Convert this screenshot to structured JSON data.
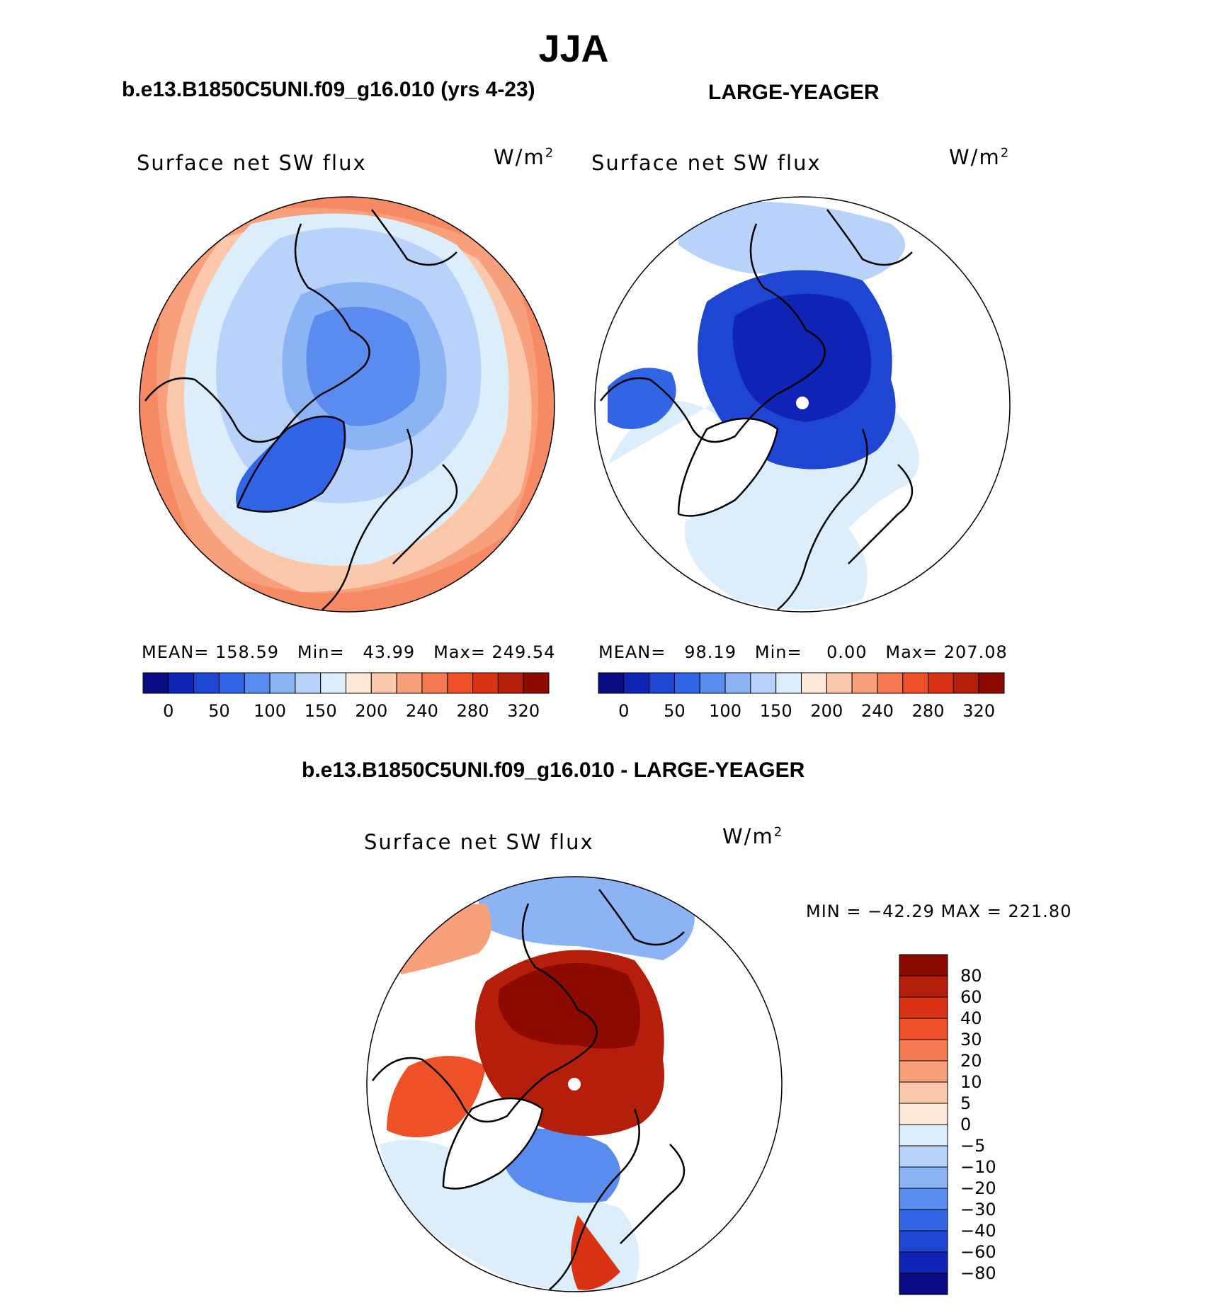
{
  "title": "JJA",
  "panels": {
    "left": {
      "case": "b.e13.B1850C5UNI.f09_g16.010 (yrs 4-23)",
      "variable": "Surface net SW flux",
      "units_base": "W/m",
      "units_exp": "2",
      "stats": {
        "mean_label": "MEAN=",
        "mean": "158.59",
        "min_label": "Min=",
        "min": "43.99",
        "max_label": "Max=",
        "max": "249.54"
      }
    },
    "right": {
      "case": "LARGE-YEAGER",
      "variable": "Surface net SW flux",
      "units_base": "W/m",
      "units_exp": "2",
      "stats": {
        "mean_label": "MEAN=",
        "mean": "98.19",
        "min_label": "Min=",
        "min": "0.00",
        "max_label": "Max=",
        "max": "207.08"
      }
    },
    "diff": {
      "case": "b.e13.B1850C5UNI.f09_g16.010 - LARGE-YEAGER",
      "variable": "Surface net SW flux",
      "units_base": "W/m",
      "units_exp": "2",
      "minmax": "MIN = −42.29 MAX = 221.80"
    }
  },
  "colorbar_fields": {
    "ticks": [
      "0",
      "50",
      "100",
      "150",
      "200",
      "240",
      "280",
      "320"
    ],
    "colors": [
      "#0a0a82",
      "#0f23b4",
      "#1e46d2",
      "#3264e6",
      "#5a8cf0",
      "#8cb4f5",
      "#b9d2fa",
      "#dceefc",
      "#fde8d8",
      "#fbc8ac",
      "#f8a07c",
      "#f47850",
      "#ee5028",
      "#d83214",
      "#b41e0a",
      "#8c0a00"
    ]
  },
  "colorbar_diff": {
    "ticks": [
      "80",
      "60",
      "40",
      "30",
      "20",
      "10",
      "5",
      "0",
      "−5",
      "−10",
      "−20",
      "−30",
      "−40",
      "−60",
      "−80"
    ],
    "colors": [
      "#8c0a00",
      "#b41e0a",
      "#d83214",
      "#ee5028",
      "#f47850",
      "#f8a07c",
      "#fbc8ac",
      "#fde8d8",
      "#dceefc",
      "#b9d2fa",
      "#8cb4f5",
      "#5a8cf0",
      "#3264e6",
      "#1e46d2",
      "#0f23b4",
      "#0a0a82"
    ]
  },
  "map_colors": {
    "deep_blue": "#1433be",
    "mid_blue": "#3264e6",
    "light_blue": "#8cb4f5",
    "pale_blue": "#dceefc",
    "pale_orange": "#fde8d8",
    "light_orange": "#fbc8ac",
    "orange": "#f47850",
    "dark_red": "#b41e0a",
    "deepest_red": "#8c0a00",
    "land_white": "#ffffff"
  }
}
